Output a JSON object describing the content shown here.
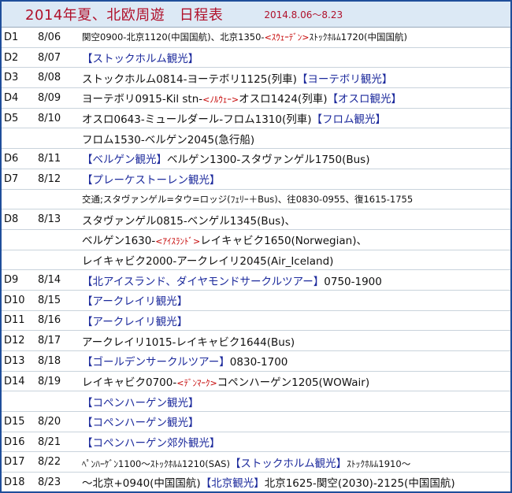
{
  "header": {
    "title": "2014年夏、北欧周遊　日程表",
    "period": "2014.8.06～8.23"
  },
  "colors": {
    "border": "#1f4e9a",
    "header_bg": "#dce9f5",
    "title": "#b0102a",
    "sightseeing": "#1c2a9c",
    "country": "#c40000"
  },
  "rows": [
    {
      "day": "D1",
      "date": "8/06",
      "segments": [
        {
          "text": "関空0900-北京1120(中国国航)、北京1350-",
          "style": "small"
        },
        {
          "text": "<ｽｳｪｰﾃﾞﾝ>",
          "style": "red"
        },
        {
          "text": "ｽﾄｯｸﾎﾙﾑ1720(中国国航)",
          "style": "small"
        }
      ]
    },
    {
      "day": "D2",
      "date": "8/07",
      "segments": [
        {
          "text": "【ストックホルム観光】",
          "style": "blue"
        }
      ]
    },
    {
      "day": "D3",
      "date": "8/08",
      "segments": [
        {
          "text": "ストックホルム0814-ヨーテボリ1125(列車)",
          "style": "black"
        },
        {
          "text": "【ヨーテボリ観光】",
          "style": "blue"
        }
      ]
    },
    {
      "day": "D4",
      "date": "8/09",
      "segments": [
        {
          "text": "ヨーテボリ0915-Kil stn-",
          "style": "black"
        },
        {
          "text": "<ﾉﾙｳｪｰ>",
          "style": "red"
        },
        {
          "text": "オスロ1424(列車)",
          "style": "black"
        },
        {
          "text": "【オスロ観光】",
          "style": "blue"
        }
      ]
    },
    {
      "day": "D5",
      "date": "8/10",
      "segments": [
        {
          "text": "オスロ0643-ミュールダール-フロム1310(列車)",
          "style": "black"
        },
        {
          "text": "【フロム観光】",
          "style": "blue"
        }
      ]
    },
    {
      "day": "",
      "date": "",
      "segments": [
        {
          "text": "フロム1530-ベルゲン2045(急行船)",
          "style": "black"
        }
      ]
    },
    {
      "day": "D6",
      "date": "8/11",
      "segments": [
        {
          "text": "【ベルゲン観光】",
          "style": "blue"
        },
        {
          "text": "ベルゲン1300-スタヴァンゲル1750(Bus)",
          "style": "black"
        }
      ]
    },
    {
      "day": "D7",
      "date": "8/12",
      "segments": [
        {
          "text": "【プレーケストーレン観光】",
          "style": "blue"
        }
      ]
    },
    {
      "day": "",
      "date": "",
      "segments": [
        {
          "text": " 交通;スタヴァンゲル=タウ=ロッジ(ﾌｪﾘｰ＋Bus)、往0830-0955、復1615-1755",
          "style": "small"
        }
      ]
    },
    {
      "day": "D8",
      "date": "8/13",
      "segments": [
        {
          "text": "スタヴァンゲル0815-ベンゲル1345(Bus)、",
          "style": "black"
        }
      ]
    },
    {
      "day": "",
      "date": "",
      "segments": [
        {
          "text": " ベルゲン1630-",
          "style": "black"
        },
        {
          "text": "<ｱｲｽﾗﾝﾄﾞ>",
          "style": "red"
        },
        {
          "text": "レイキャビク1650(Norwegian)、",
          "style": "black"
        }
      ]
    },
    {
      "day": "",
      "date": "",
      "segments": [
        {
          "text": " レイキャビク2000-アークレイリ2045(Air_Iceland)",
          "style": "black"
        }
      ]
    },
    {
      "day": "D9",
      "date": "8/14",
      "segments": [
        {
          "text": "【北アイスランド、ダイヤモンドサークルツアー】",
          "style": "blue"
        },
        {
          "text": "0750-1900",
          "style": "black"
        }
      ]
    },
    {
      "day": "D10",
      "date": "8/15",
      "segments": [
        {
          "text": "【アークレイリ観光】",
          "style": "blue"
        }
      ]
    },
    {
      "day": "D11",
      "date": "8/16",
      "segments": [
        {
          "text": "【アークレイリ観光】",
          "style": "blue"
        }
      ]
    },
    {
      "day": "D12",
      "date": "8/17",
      "segments": [
        {
          "text": "アークレイリ1015-レイキャビク1644(Bus)",
          "style": "black"
        }
      ]
    },
    {
      "day": "D13",
      "date": "8/18",
      "segments": [
        {
          "text": "【ゴールデンサークルツアー】",
          "style": "blue"
        },
        {
          "text": "0830-1700",
          "style": "black"
        }
      ]
    },
    {
      "day": "D14",
      "date": "8/19",
      "segments": [
        {
          "text": "レイキャビク0700-",
          "style": "black"
        },
        {
          "text": "<ﾃﾞﾝﾏｰｸ>",
          "style": "red"
        },
        {
          "text": "コペンハーゲン1205(WOWair)",
          "style": "black"
        }
      ]
    },
    {
      "day": "",
      "date": "",
      "segments": [
        {
          "text": "【コペンハーゲン観光】",
          "style": "blue"
        }
      ]
    },
    {
      "day": "D15",
      "date": "8/20",
      "segments": [
        {
          "text": "【コペンハーゲン観光】",
          "style": "blue"
        }
      ]
    },
    {
      "day": "D16",
      "date": "8/21",
      "segments": [
        {
          "text": "【コペンハーゲン郊外観光】",
          "style": "blue"
        }
      ]
    },
    {
      "day": "D17",
      "date": "8/22",
      "segments": [
        {
          "text": "ﾍﾟﾝﾊｰｹﾞﾝ1100～ｽﾄｯｸﾎﾙﾑ1210(SAS)",
          "style": "small"
        },
        {
          "text": "【ストックホルム観光】",
          "style": "blue"
        },
        {
          "text": "ｽﾄｯｸﾎﾙﾑ1910～",
          "style": "small"
        }
      ]
    },
    {
      "day": "D18",
      "date": "8/23",
      "segments": [
        {
          "text": "～北京+0940(中国国航)",
          "style": "black"
        },
        {
          "text": "【北京観光】",
          "style": "blue"
        },
        {
          "text": "北京1625-関空(2030)-2125(中国国航)",
          "style": "black"
        }
      ]
    }
  ]
}
